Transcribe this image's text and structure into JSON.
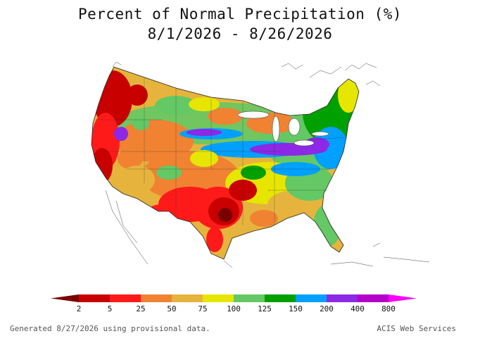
{
  "title": {
    "line1": "Percent of Normal Precipitation (%)",
    "line2": "8/1/2026 - 8/26/2026"
  },
  "legend": {
    "tick_labels": [
      "2",
      "5",
      "25",
      "50",
      "75",
      "100",
      "125",
      "150",
      "200",
      "400",
      "800"
    ],
    "colors": [
      "#7a0000",
      "#c80000",
      "#ff1a1a",
      "#f08232",
      "#e6b43c",
      "#e6e600",
      "#64c864",
      "#00a000",
      "#00a0ff",
      "#8c28e6",
      "#b400c8",
      "#ff00ff"
    ]
  },
  "footer": {
    "generated": "Generated 8/27/2026 using provisional data.",
    "source": "ACIS Web Services"
  }
}
